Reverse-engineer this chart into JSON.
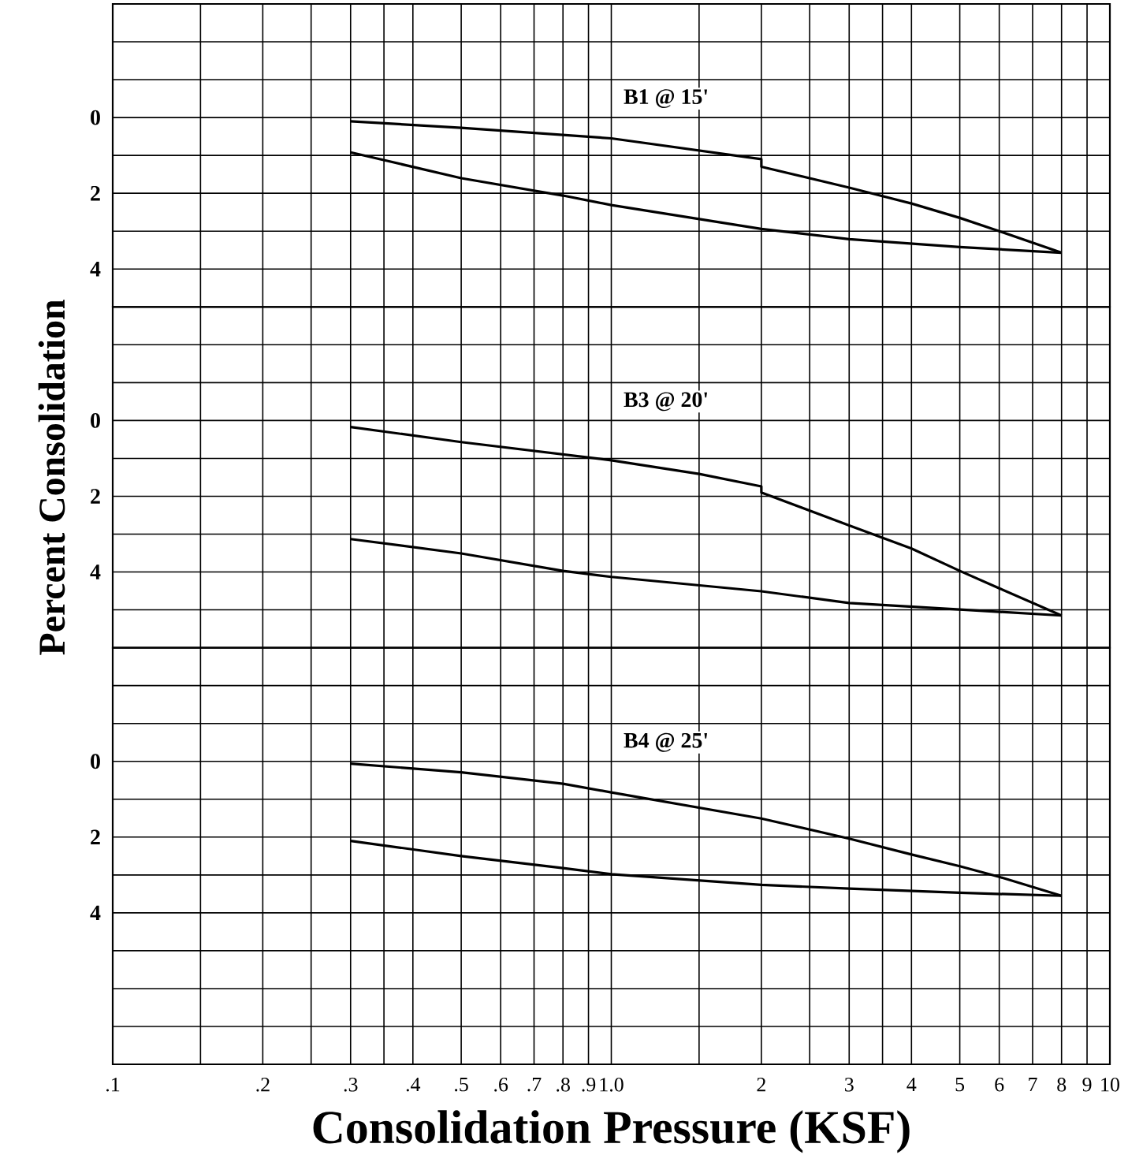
{
  "chart_data": [
    {
      "type": "line",
      "xlim": [
        0.1,
        10
      ],
      "ylim": [
        5,
        -3
      ],
      "log": "x",
      "grid": true,
      "tick_labels": "y",
      "marker": "none",
      "line_style": "solid",
      "xticks": [
        {
          "value": 0.1,
          "label": null
        },
        {
          "value": 0.15,
          "label": null
        },
        {
          "value": 0.2,
          "label": null
        },
        {
          "value": 0.25,
          "label": null
        },
        {
          "value": 0.3,
          "label": null
        },
        {
          "value": 0.35,
          "label": null
        },
        {
          "value": 0.4,
          "label": null
        },
        {
          "value": 0.5,
          "label": null
        },
        {
          "value": 0.6,
          "label": null
        },
        {
          "value": 0.7,
          "label": null
        },
        {
          "value": 0.8,
          "label": null
        },
        {
          "value": 0.9,
          "label": null
        },
        {
          "value": 1,
          "label": null
        },
        {
          "value": 1.5,
          "label": null
        },
        {
          "value": 2,
          "label": null
        },
        {
          "value": 2.5,
          "label": null
        },
        {
          "value": 3,
          "label": null
        },
        {
          "value": 3.5,
          "label": null
        },
        {
          "value": 4,
          "label": null
        },
        {
          "value": 5,
          "label": null
        },
        {
          "value": 6,
          "label": null
        },
        {
          "value": 7,
          "label": null
        },
        {
          "value": 8,
          "label": null
        },
        {
          "value": 9,
          "label": null
        },
        {
          "value": 10,
          "label": null
        }
      ],
      "yticks": [
        {
          "value": -2,
          "label": null
        },
        {
          "value": -1,
          "label": null
        },
        0,
        {
          "value": 1,
          "label": null
        },
        2,
        {
          "value": 3,
          "label": null
        },
        4
      ],
      "annotations": [
        "B1 @ 15'"
      ],
      "series": [
        {
          "color": "#000000",
          "x": [
            0.3,
            0.5,
            1.0,
            2,
            2,
            3,
            4,
            5,
            6,
            8
          ],
          "values": [
            0.1,
            0.27,
            0.55,
            1.1,
            1.3,
            1.85,
            2.27,
            2.65,
            3.0,
            3.57
          ]
        },
        {
          "color": "#000000",
          "x": [
            0.3,
            0.5,
            0.8,
            1.0,
            2,
            3,
            5,
            8
          ],
          "values": [
            0.92,
            1.6,
            2.06,
            2.31,
            2.94,
            3.21,
            3.42,
            3.57
          ]
        }
      ]
    },
    {
      "type": "line",
      "xlim": [
        0.1,
        10
      ],
      "ylim": [
        6,
        -3
      ],
      "log": "x",
      "grid": true,
      "tick_labels": "y",
      "marker": "none",
      "line_style": "solid",
      "ylabel": "Percent Consolidation",
      "xticks": [
        {
          "value": 0.1,
          "label": null
        },
        {
          "value": 0.15,
          "label": null
        },
        {
          "value": 0.2,
          "label": null
        },
        {
          "value": 0.25,
          "label": null
        },
        {
          "value": 0.3,
          "label": null
        },
        {
          "value": 0.35,
          "label": null
        },
        {
          "value": 0.4,
          "label": null
        },
        {
          "value": 0.5,
          "label": null
        },
        {
          "value": 0.6,
          "label": null
        },
        {
          "value": 0.7,
          "label": null
        },
        {
          "value": 0.8,
          "label": null
        },
        {
          "value": 0.9,
          "label": null
        },
        {
          "value": 1,
          "label": null
        },
        {
          "value": 1.5,
          "label": null
        },
        {
          "value": 2,
          "label": null
        },
        {
          "value": 2.5,
          "label": null
        },
        {
          "value": 3,
          "label": null
        },
        {
          "value": 3.5,
          "label": null
        },
        {
          "value": 4,
          "label": null
        },
        {
          "value": 5,
          "label": null
        },
        {
          "value": 6,
          "label": null
        },
        {
          "value": 7,
          "label": null
        },
        {
          "value": 8,
          "label": null
        },
        {
          "value": 9,
          "label": null
        },
        {
          "value": 10,
          "label": null
        }
      ],
      "yticks": [
        {
          "value": -2,
          "label": null
        },
        {
          "value": -1,
          "label": null
        },
        0,
        {
          "value": 1,
          "label": null
        },
        2,
        {
          "value": 3,
          "label": null
        },
        4,
        {
          "value": 5,
          "label": null
        }
      ],
      "annotations": [
        "B3 @ 20'"
      ],
      "series": [
        {
          "color": "#000000",
          "x": [
            0.3,
            0.5,
            1.0,
            1.5,
            2,
            2,
            3,
            4,
            5,
            6,
            8
          ],
          "values": [
            0.17,
            0.57,
            1.05,
            1.41,
            1.74,
            1.9,
            2.77,
            3.38,
            3.97,
            4.43,
            5.15
          ]
        },
        {
          "color": "#000000",
          "x": [
            0.3,
            0.5,
            0.8,
            1.0,
            2,
            3,
            5,
            8
          ],
          "values": [
            3.13,
            3.51,
            3.97,
            4.13,
            4.51,
            4.82,
            4.99,
            5.15
          ]
        }
      ]
    },
    {
      "type": "line",
      "xlim": [
        0.1,
        10
      ],
      "ylim": [
        8,
        -3
      ],
      "log": "x",
      "grid": true,
      "marker": "none",
      "line_style": "solid",
      "xlabel": "Consolidation Pressure (KSF)",
      "xticks": [
        {
          "value": 0.1,
          "label": ".1"
        },
        {
          "value": 0.15,
          "label": null
        },
        {
          "value": 0.2,
          "label": ".2"
        },
        {
          "value": 0.25,
          "label": null
        },
        {
          "value": 0.3,
          "label": ".3"
        },
        {
          "value": 0.35,
          "label": null
        },
        {
          "value": 0.4,
          "label": ".4"
        },
        {
          "value": 0.5,
          "label": ".5"
        },
        {
          "value": 0.6,
          "label": ".6"
        },
        {
          "value": 0.7,
          "label": ".7"
        },
        {
          "value": 0.8,
          "label": ".8"
        },
        {
          "value": 0.9,
          "label": ".9"
        },
        {
          "value": 1,
          "label": "1.0"
        },
        {
          "value": 1.5,
          "label": null
        },
        2,
        {
          "value": 2.5,
          "label": null
        },
        3,
        {
          "value": 3.5,
          "label": null
        },
        4,
        5,
        6,
        7,
        8,
        9,
        10
      ],
      "yticks": [
        {
          "value": -2,
          "label": null
        },
        {
          "value": -1,
          "label": null
        },
        0,
        {
          "value": 1,
          "label": null
        },
        2,
        {
          "value": 3,
          "label": null
        },
        4,
        {
          "value": 5,
          "label": null
        },
        {
          "value": 6,
          "label": null
        },
        {
          "value": 7,
          "label": null
        }
      ],
      "annotations": [
        "B4 @ 25'"
      ],
      "series": [
        {
          "color": "#000000",
          "x": [
            0.3,
            0.5,
            0.8,
            1.0,
            2,
            3,
            4,
            5,
            6,
            8
          ],
          "values": [
            0.06,
            0.29,
            0.59,
            0.82,
            1.51,
            2.04,
            2.46,
            2.77,
            3.05,
            3.55
          ]
        },
        {
          "color": "#000000",
          "x": [
            0.3,
            0.5,
            0.8,
            1.0,
            2,
            3,
            5,
            8
          ],
          "values": [
            2.1,
            2.5,
            2.82,
            2.98,
            3.26,
            3.36,
            3.47,
            3.55
          ]
        }
      ]
    }
  ]
}
